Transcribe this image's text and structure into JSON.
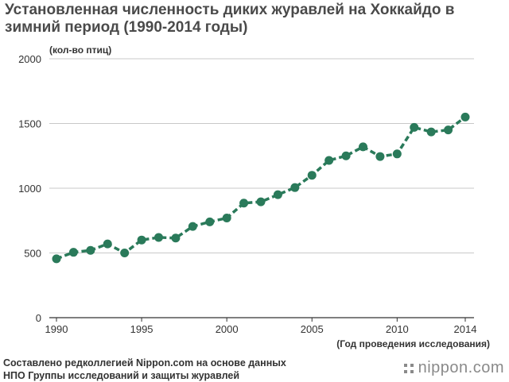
{
  "chart_data": {
    "type": "line",
    "title": "Установленная численность диких журавлей на Хоккайдо в зимний период (1990-2014 годы)",
    "ylabel": "(кол-во птиц)",
    "xlabel": "(Год проведения исследования)",
    "ylim": [
      0,
      2000
    ],
    "xlim": [
      1990,
      2014
    ],
    "y_ticks": [
      0,
      500,
      1000,
      1500,
      2000
    ],
    "x_ticks": [
      1990,
      1995,
      2000,
      2005,
      2010,
      2014
    ],
    "grid": true,
    "color": "#2a7a5a",
    "x": [
      1990,
      1991,
      1992,
      1993,
      1994,
      1995,
      1996,
      1997,
      1998,
      1999,
      2000,
      2001,
      2002,
      2003,
      2004,
      2005,
      2006,
      2007,
      2008,
      2009,
      2010,
      2011,
      2012,
      2013,
      2014
    ],
    "values": [
      455,
      505,
      520,
      570,
      500,
      600,
      620,
      615,
      705,
      740,
      770,
      885,
      895,
      950,
      1005,
      1100,
      1215,
      1250,
      1320,
      1245,
      1265,
      1470,
      1435,
      1450,
      1550
    ]
  },
  "source": {
    "line1": "Составлено редколлегией Nippon.com на основе данных",
    "line2": "НПО Группы исследований и защиты журавлей"
  },
  "brand": {
    "text": "nippon.com"
  }
}
